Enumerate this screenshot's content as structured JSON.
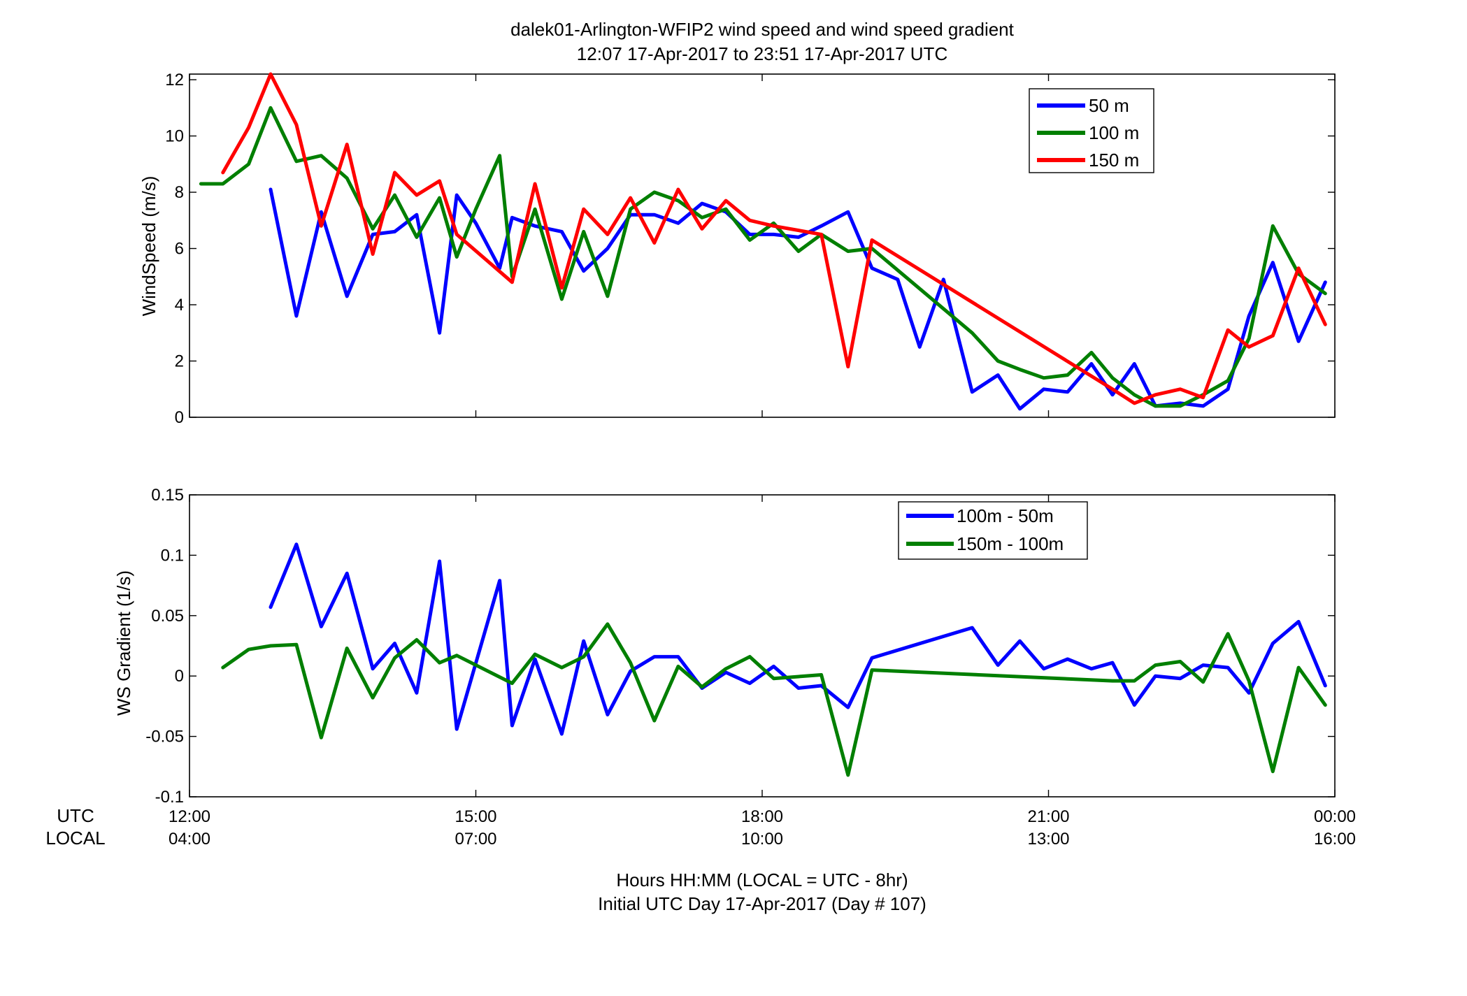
{
  "chart_data": [
    {
      "type": "line",
      "title": "dalek01-Arlington-WFIP2  wind speed and wind speed gradient",
      "subtitle": "12:07 17-Apr-2017 to 23:51 17-Apr-2017  UTC",
      "xlabel": "",
      "ylabel": "WindSpeed (m/s)",
      "xlim": [
        12.0,
        24.0
      ],
      "ylim": [
        0,
        12.2
      ],
      "yticks": [
        0,
        2,
        4,
        6,
        8,
        10,
        12
      ],
      "yticklabels": [
        "0",
        "2",
        "4",
        "6",
        "8",
        "10",
        "12"
      ],
      "grid": false,
      "legend_position": "top-right",
      "series": [
        {
          "name": "50 m",
          "color": "#0000ff",
          "x": [
            12.85,
            13.12,
            13.38,
            13.65,
            13.92,
            14.15,
            14.38,
            14.62,
            14.8,
            15.0,
            15.25,
            15.38,
            15.62,
            15.9,
            16.13,
            16.38,
            16.62,
            16.87,
            17.12,
            17.37,
            17.62,
            17.87,
            18.12,
            18.38,
            18.62,
            18.9,
            19.15,
            19.42,
            19.65,
            19.9,
            20.2,
            20.47,
            20.7,
            20.95,
            21.2,
            21.45,
            21.67,
            21.9,
            22.12,
            22.38,
            22.62,
            22.88,
            23.1,
            23.35,
            23.62,
            23.9
          ],
          "y": [
            8.1,
            3.6,
            7.3,
            4.3,
            6.5,
            6.6,
            7.2,
            3.0,
            7.9,
            6.9,
            5.3,
            7.1,
            6.8,
            6.6,
            5.2,
            6.0,
            7.2,
            7.2,
            6.9,
            7.6,
            7.3,
            6.5,
            6.5,
            6.4,
            6.8,
            7.3,
            5.3,
            4.9,
            2.5,
            4.9,
            0.9,
            1.5,
            0.3,
            1.0,
            0.9,
            1.9,
            0.8,
            1.9,
            0.4,
            0.5,
            0.4,
            1.0,
            3.6,
            5.5,
            2.7,
            4.8
          ]
        },
        {
          "name": "100 m",
          "color": "#007f00",
          "x": [
            12.12,
            12.35,
            12.62,
            12.85,
            13.12,
            13.38,
            13.65,
            13.92,
            14.15,
            14.38,
            14.62,
            14.8,
            15.0,
            15.25,
            15.38,
            15.62,
            15.9,
            16.13,
            16.38,
            16.62,
            16.87,
            17.12,
            17.37,
            17.62,
            17.87,
            18.12,
            18.38,
            18.62,
            18.9,
            19.15,
            20.2,
            20.47,
            20.7,
            20.95,
            21.2,
            21.45,
            21.67,
            21.9,
            22.12,
            22.38,
            22.62,
            22.88,
            23.1,
            23.35,
            23.62,
            23.9
          ],
          "y": [
            8.3,
            8.3,
            9.0,
            11.0,
            9.1,
            9.3,
            8.5,
            6.7,
            7.9,
            6.4,
            7.8,
            5.7,
            7.4,
            9.3,
            5.0,
            7.4,
            4.2,
            6.6,
            4.3,
            7.4,
            8.0,
            7.7,
            7.1,
            7.4,
            6.3,
            6.9,
            5.9,
            6.5,
            5.9,
            6.0,
            3.0,
            2.0,
            1.7,
            1.4,
            1.5,
            2.3,
            1.4,
            0.8,
            0.4,
            0.4,
            0.8,
            1.3,
            2.8,
            6.8,
            5.1,
            4.4
          ]
        },
        {
          "name": "150 m",
          "color": "#ff0000",
          "x": [
            12.35,
            12.62,
            12.85,
            13.12,
            13.38,
            13.65,
            13.92,
            14.15,
            14.38,
            14.62,
            14.8,
            15.38,
            15.62,
            15.9,
            16.13,
            16.38,
            16.62,
            16.87,
            17.12,
            17.37,
            17.62,
            17.87,
            18.12,
            18.62,
            18.9,
            19.15,
            21.67,
            21.9,
            22.12,
            22.38,
            22.62,
            22.88,
            23.1,
            23.35,
            23.62,
            23.9
          ],
          "y": [
            8.7,
            10.3,
            12.2,
            10.4,
            6.8,
            9.7,
            5.8,
            8.7,
            7.9,
            8.4,
            6.5,
            4.8,
            8.3,
            4.6,
            7.4,
            6.5,
            7.8,
            6.2,
            8.1,
            6.7,
            7.7,
            7.0,
            6.8,
            6.5,
            1.8,
            6.3,
            1.0,
            0.5,
            0.8,
            1.0,
            0.7,
            3.1,
            2.5,
            2.9,
            5.3,
            3.3
          ]
        }
      ]
    },
    {
      "type": "line",
      "title": "",
      "xlabel": "Hours HH:MM  (LOCAL = UTC - 8hr)",
      "xlabel2": "Initial UTC Day 17-Apr-2017 (Day # 107)",
      "ylabel": "WS Gradient (1/s)",
      "xlim": [
        12.0,
        24.0
      ],
      "ylim": [
        -0.1,
        0.15
      ],
      "yticks": [
        -0.1,
        -0.05,
        0,
        0.05,
        0.1,
        0.15
      ],
      "yticklabels": [
        "-0.1",
        "-0.05",
        "0",
        "0.05",
        "0.1",
        "0.15"
      ],
      "xtick_rows": {
        "utc_label": "UTC",
        "local_label": "LOCAL",
        "ticks": [
          {
            "x": 12,
            "utc": "12:00",
            "local": "04:00"
          },
          {
            "x": 15,
            "utc": "15:00",
            "local": "07:00"
          },
          {
            "x": 18,
            "utc": "18:00",
            "local": "10:00"
          },
          {
            "x": 21,
            "utc": "21:00",
            "local": "13:00"
          },
          {
            "x": 24,
            "utc": "00:00",
            "local": "16:00"
          }
        ]
      },
      "grid": false,
      "legend_position": "top-right",
      "series": [
        {
          "name": "100m - 50m",
          "color": "#0000ff",
          "x": [
            12.85,
            13.12,
            13.38,
            13.65,
            13.92,
            14.15,
            14.38,
            14.62,
            14.8,
            15.25,
            15.38,
            15.62,
            15.9,
            16.13,
            16.38,
            16.62,
            16.87,
            17.12,
            17.37,
            17.62,
            17.87,
            18.12,
            18.38,
            18.62,
            18.9,
            19.15,
            20.2,
            20.47,
            20.7,
            20.95,
            21.2,
            21.45,
            21.67,
            21.9,
            22.12,
            22.38,
            22.62,
            22.88,
            23.1,
            23.35,
            23.62,
            23.9
          ],
          "y": [
            0.057,
            0.109,
            0.041,
            0.085,
            0.006,
            0.027,
            -0.014,
            0.095,
            -0.044,
            0.079,
            -0.041,
            0.014,
            -0.048,
            0.029,
            -0.032,
            0.004,
            0.016,
            0.016,
            -0.01,
            0.003,
            -0.006,
            0.008,
            -0.01,
            -0.008,
            -0.026,
            0.015,
            0.04,
            0.009,
            0.029,
            0.006,
            0.014,
            0.006,
            0.011,
            -0.024,
            0.0,
            -0.002,
            0.009,
            0.007,
            -0.014,
            0.027,
            0.045,
            -0.008
          ]
        },
        {
          "name": "150m - 100m",
          "color": "#007f00",
          "x": [
            12.35,
            12.62,
            12.85,
            13.12,
            13.38,
            13.65,
            13.92,
            14.15,
            14.38,
            14.62,
            14.8,
            15.38,
            15.62,
            15.9,
            16.13,
            16.38,
            16.62,
            16.87,
            17.12,
            17.37,
            17.62,
            17.87,
            18.12,
            18.62,
            18.9,
            19.15,
            21.67,
            21.9,
            22.12,
            22.38,
            22.62,
            22.88,
            23.1,
            23.35,
            23.62,
            23.9
          ],
          "y": [
            0.007,
            0.022,
            0.025,
            0.026,
            -0.051,
            0.023,
            -0.018,
            0.015,
            0.03,
            0.011,
            0.017,
            -0.006,
            0.018,
            0.007,
            0.016,
            0.043,
            0.011,
            -0.037,
            0.008,
            -0.009,
            0.006,
            0.016,
            -0.002,
            0.001,
            -0.082,
            0.005,
            -0.004,
            -0.004,
            0.009,
            0.012,
            -0.005,
            0.035,
            -0.004,
            -0.079,
            0.007,
            -0.024
          ]
        }
      ]
    }
  ]
}
